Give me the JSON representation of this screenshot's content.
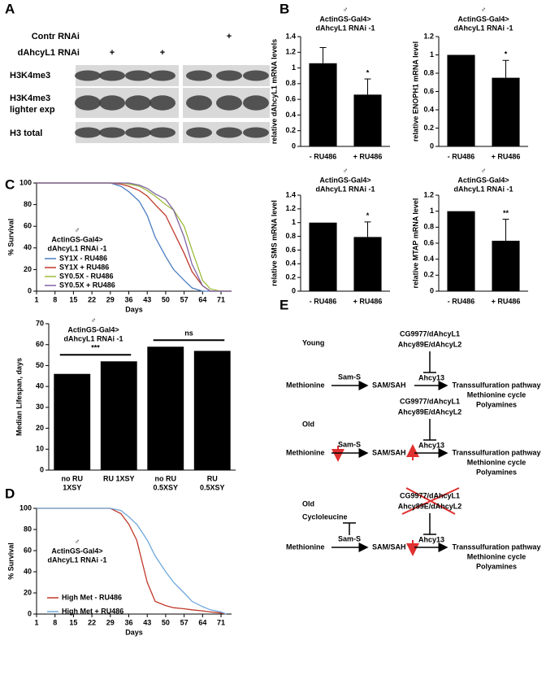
{
  "panel_labels": [
    "A",
    "B",
    "C",
    "D",
    "E"
  ],
  "blot": {
    "conditions": [
      {
        "label": "Contr RNAi",
        "marks": [
          null,
          null,
          null,
          null,
          null,
          "+",
          null
        ]
      },
      {
        "label": "dAhcyL1 RNAi",
        "marks": [
          null,
          "+",
          null,
          "+",
          null,
          null,
          null
        ]
      }
    ],
    "rows": [
      [
        "H3K4me3"
      ],
      [
        "H3K4me3",
        "lighter exp"
      ],
      [
        "H3 total"
      ]
    ]
  },
  "chart_data": [
    {
      "type": "bar",
      "symbol": "♂",
      "title": [
        "ActinGS-Gal4>",
        "dAhcyL1 RNAi -1"
      ],
      "y_label": "relative dAhcyL1  mRNA levels",
      "categories": [
        "- RU486",
        "+ RU486"
      ],
      "values": [
        1.06,
        0.66
      ],
      "errors": [
        0.2,
        0.2
      ],
      "significance": [
        {
          "bars": [
            1
          ],
          "label": "*"
        }
      ],
      "color": "#000000",
      "ylim": [
        0,
        1.4
      ],
      "yticks": [
        0,
        0.2,
        0.4,
        0.6,
        0.8,
        1,
        1.2,
        1.4
      ]
    },
    {
      "type": "bar",
      "symbol": "♂",
      "title": [
        "ActinGS-Gal4>",
        "dAhcyL1 RNAi -1"
      ],
      "y_label": "relative ENOPH1 mRNA level",
      "categories": [
        "- RU486",
        "+ RU486"
      ],
      "values": [
        1,
        0.75
      ],
      "errors": [
        null,
        0.19
      ],
      "significance": [
        {
          "bars": [
            1
          ],
          "label": "*"
        }
      ],
      "color": "#000000",
      "ylim": [
        0,
        1.2
      ],
      "yticks": [
        0,
        0.2,
        0.4,
        0.6,
        0.8,
        1,
        1.2
      ]
    },
    {
      "type": "bar",
      "symbol": "♂",
      "title": [
        "ActinGS-Gal4>",
        "dAhcyL1 RNAi -1"
      ],
      "y_label": "relative SMS mRNA level",
      "categories": [
        "- RU486",
        "+ RU486"
      ],
      "values": [
        1,
        0.79
      ],
      "errors": [
        null,
        0.22
      ],
      "significance": [
        {
          "bars": [
            1
          ],
          "label": "*"
        }
      ],
      "color": "#000000",
      "ylim": [
        0,
        1.4
      ],
      "yticks": [
        0,
        0.2,
        0.4,
        0.6,
        0.8,
        1,
        1.2,
        1.4
      ]
    },
    {
      "type": "bar",
      "symbol": "♂",
      "title": [
        "ActinGS-Gal4>",
        "dAhcyL1 RNAi -1"
      ],
      "y_label": "relative MTAP mRNA level",
      "categories": [
        "- RU486",
        "+ RU486"
      ],
      "values": [
        1,
        0.63
      ],
      "errors": [
        null,
        0.27
      ],
      "significance": [
        {
          "bars": [
            1
          ],
          "label": "**"
        }
      ],
      "color": "#000000",
      "ylim": [
        0,
        1.2
      ],
      "yticks": [
        0,
        0.2,
        0.4,
        0.6,
        0.8,
        1,
        1.2
      ]
    },
    {
      "type": "line",
      "symbol": "♂",
      "title": [
        "ActinGS-Gal4>",
        "dAhcyL1 RNAi -1"
      ],
      "y_label": "% Survival",
      "x_label": "Days",
      "x": [
        1,
        22,
        29,
        33,
        36,
        40,
        43,
        46,
        50,
        53,
        57,
        60,
        64,
        67,
        71,
        75
      ],
      "series": [
        {
          "name": "SY1X - RU486",
          "color": "#4a7cc2",
          "values": [
            100,
            100,
            100,
            97,
            92,
            83,
            70,
            50,
            32,
            20,
            10,
            3,
            0,
            0,
            0,
            0
          ]
        },
        {
          "name": "SY1X + RU486",
          "color": "#c0392b",
          "values": [
            100,
            100,
            100,
            99,
            97,
            93,
            88,
            80,
            70,
            55,
            35,
            18,
            5,
            0,
            0,
            0
          ]
        },
        {
          "name": "SY0.5X - RU486",
          "color": "#9bbb3b",
          "values": [
            100,
            100,
            100,
            100,
            99,
            97,
            93,
            88,
            80,
            75,
            60,
            38,
            10,
            2,
            0,
            0
          ]
        },
        {
          "name": "SY0.5X + RU486",
          "color": "#8064a2",
          "values": [
            100,
            100,
            100,
            100,
            100,
            98,
            95,
            90,
            85,
            75,
            50,
            25,
            5,
            0,
            0,
            0
          ]
        }
      ],
      "xlim": [
        1,
        75
      ],
      "xticks": [
        1,
        8,
        15,
        22,
        29,
        36,
        43,
        50,
        57,
        64,
        71
      ],
      "ylim": [
        0,
        100
      ],
      "yticks": [
        0,
        20,
        40,
        60,
        80,
        100
      ]
    },
    {
      "type": "bar",
      "symbol": "♂",
      "title": [
        "ActinGS-Gal4>",
        "dAhcyL1 RNAi -1"
      ],
      "y_label": "Median Lifespan, days",
      "categories": [
        [
          "no RU",
          "1XSY"
        ],
        [
          "RU 1XSY"
        ],
        [
          "no RU",
          "0.5XSY"
        ],
        [
          "RU",
          "0.5XSY"
        ]
      ],
      "values": [
        46,
        52,
        59,
        57
      ],
      "errors": [
        null,
        null,
        null,
        null
      ],
      "significance": [
        {
          "bars": [
            0,
            1
          ],
          "label": "***"
        },
        {
          "bars": [
            2,
            3
          ],
          "label": "ns"
        }
      ],
      "color": "#000000",
      "ylim": [
        0,
        70
      ],
      "yticks": [
        0,
        10,
        20,
        30,
        40,
        50,
        60,
        70
      ]
    },
    {
      "type": "line",
      "symbol": "♂",
      "title": [
        "ActinGS-Gal4>",
        "dAhcyL1 RNAi -1"
      ],
      "y_label": "% Survival",
      "x_label": "Days",
      "x": [
        1,
        22,
        29,
        33,
        36,
        39,
        43,
        46,
        50,
        53,
        57,
        60,
        64,
        67,
        71,
        73
      ],
      "series": [
        {
          "name": "High Met - RU486",
          "color": "#c0392b",
          "values": [
            100,
            100,
            100,
            95,
            85,
            70,
            30,
            12,
            8,
            6,
            5,
            4,
            3,
            2,
            1,
            0
          ]
        },
        {
          "name": "High Met + RU486",
          "color": "#6fa8dc",
          "values": [
            100,
            100,
            100,
            98,
            92,
            85,
            70,
            55,
            40,
            30,
            20,
            12,
            7,
            4,
            2,
            0
          ]
        }
      ],
      "xlim": [
        1,
        75
      ],
      "xticks": [
        1,
        8,
        15,
        22,
        29,
        36,
        43,
        50,
        57,
        64,
        71
      ],
      "ylim": [
        0,
        100
      ],
      "yticks": [
        0,
        20,
        40,
        60,
        80,
        100
      ]
    }
  ],
  "diagram": {
    "inhibitor": "Cycloleucine",
    "rows": [
      {
        "label": "Young",
        "enzymes": [
          "CG9977/dAhcyL1",
          "Ahcy89E/dAhcyL2"
        ],
        "substrate": "Methionine",
        "enzyme1": "Sam-S",
        "product": "SAM/SAH",
        "enzyme2": "Ahcy13",
        "outputs": [
          "Transsulfuration pathway",
          "Methionine cycle",
          "Polyamines"
        ]
      },
      {
        "label": "Old",
        "enzymes": [
          "CG9977/dAhcyL1",
          "Ahcy89E/dAhcyL2"
        ],
        "substrate": "Methionine",
        "enzyme1": "Sam-S",
        "product": "SAM/SAH",
        "enzyme2": "Ahcy13",
        "outputs": [
          "Transsulfuration pathway",
          "Methionine cycle",
          "Polyamines"
        ]
      },
      {
        "label": "Old",
        "enzymes": [
          "CG9977/dAhcyL1",
          "Ahcy89E/dAhcyL2"
        ],
        "substrate": "Methionine",
        "enzyme1": "Sam-S",
        "product": "SAM/SAH",
        "enzyme2": "Ahcy13",
        "outputs": [
          "Transsulfuration pathway",
          "Methionine cycle",
          "Polyamines"
        ]
      }
    ]
  }
}
